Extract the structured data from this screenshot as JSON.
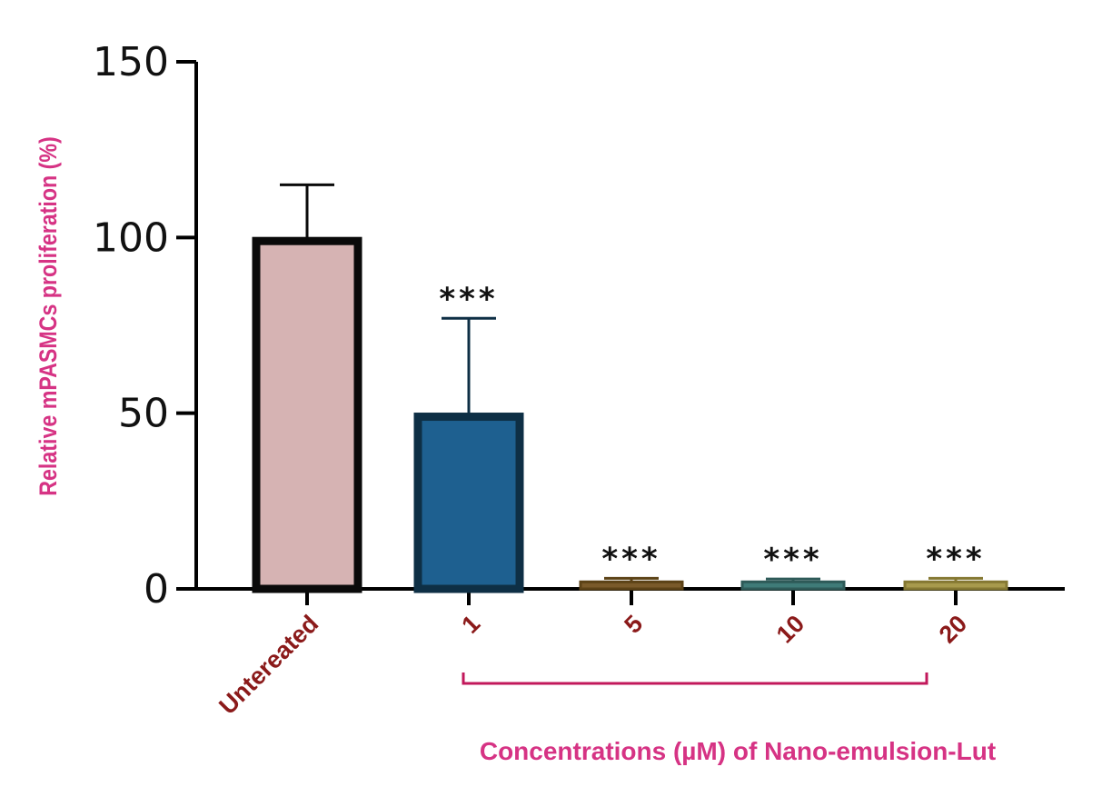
{
  "chart_data": {
    "type": "bar",
    "categories": [
      "Untereated",
      "1",
      "5",
      "10",
      "20"
    ],
    "values": [
      99,
      49,
      2,
      2,
      2
    ],
    "error_upper": [
      115,
      77,
      3,
      2.8,
      3
    ],
    "significance": [
      "",
      "***",
      "***",
      "***",
      "***"
    ],
    "ylabel": "Relative mPASMCs proliferation (%)",
    "xlabel": "Concentrations (µM) of Nano-emulsion-Lut",
    "ylim": [
      0,
      150
    ],
    "yticks": [
      0,
      50,
      100,
      150
    ],
    "grid": false,
    "legend": "none",
    "bar_fills": [
      "#d6b3b3",
      "#1e6090",
      "#7a5a2a",
      "#3f7b78",
      "#a89a4c"
    ],
    "bar_strokes": [
      "#0a0a0a",
      "#0e2f45",
      "#5c4216",
      "#2e5a58",
      "#857832"
    ],
    "bracket_color": "#c2185b"
  }
}
